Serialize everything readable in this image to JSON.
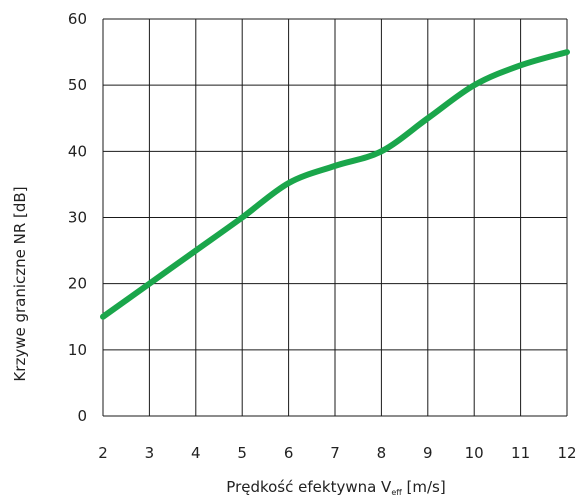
{
  "chart_data": {
    "type": "line",
    "xlabel_main": "Prędkość efektywna V",
    "xlabel_sub": "eff",
    "xlabel_unit": " [m/s]",
    "ylabel": "Krzywe graniczne NR [dB]",
    "xlim": [
      2,
      12
    ],
    "ylim": [
      0,
      60
    ],
    "x_ticks": [
      "2",
      "3",
      "4",
      "5",
      "6",
      "7",
      "8",
      "9",
      "10",
      "11",
      "12"
    ],
    "y_ticks": [
      "0",
      "10",
      "20",
      "30",
      "40",
      "50",
      "60"
    ],
    "grid": true,
    "series": [
      {
        "color": "#1aa64b",
        "x": [
          2,
          3,
          4,
          5,
          6,
          7,
          8,
          9,
          10,
          11,
          12
        ],
        "y": [
          15,
          20,
          25,
          30,
          35.2,
          37.8,
          40,
          45,
          50,
          53,
          55
        ]
      }
    ]
  }
}
